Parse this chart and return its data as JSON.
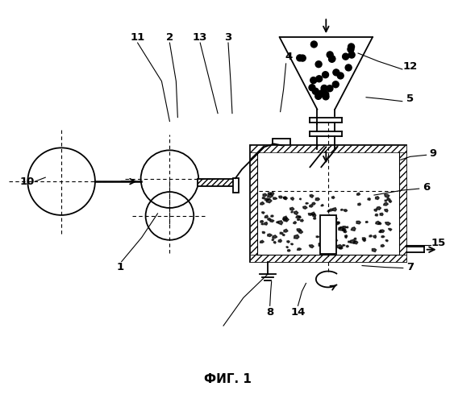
{
  "title": "ФИГ. 1",
  "background_color": "#ffffff",
  "line_color": "#000000",
  "fig_width": 5.63,
  "fig_height": 5.0,
  "dpi": 100
}
